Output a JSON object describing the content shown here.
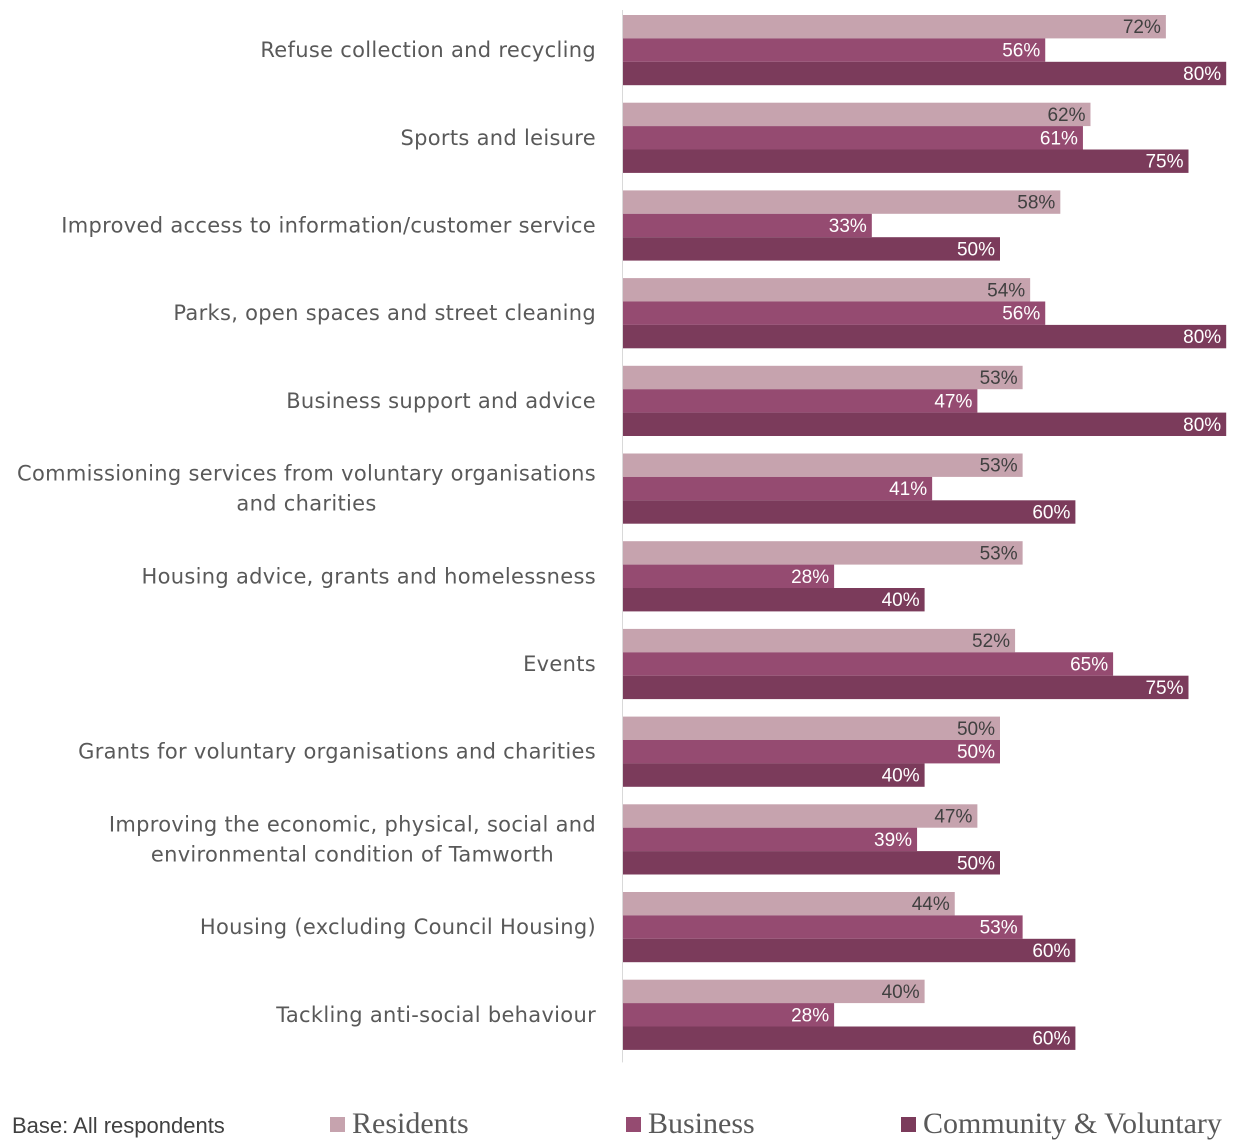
{
  "chart_data": {
    "type": "bar",
    "orientation": "horizontal",
    "categories": [
      [
        "Refuse collection and recycling"
      ],
      [
        "Sports and leisure"
      ],
      [
        "Improved access to information/customer service"
      ],
      [
        "Parks, open spaces and street cleaning"
      ],
      [
        "Business support and advice"
      ],
      [
        "Commissioning services from voluntary organisations",
        "and charities"
      ],
      [
        "Housing advice, grants and homelessness"
      ],
      [
        "Events"
      ],
      [
        "Grants for voluntary organisations and charities"
      ],
      [
        "Improving the economic, physical, social and",
        "environmental condition of Tamworth"
      ],
      [
        "Housing (excluding Council Housing)"
      ],
      [
        "Tackling anti-social behaviour"
      ]
    ],
    "series": [
      {
        "name": "Residents",
        "color": "#c6a3ae",
        "label_color": "#404040",
        "values": [
          72,
          62,
          58,
          54,
          53,
          53,
          53,
          52,
          50,
          47,
          44,
          40
        ]
      },
      {
        "name": "Business",
        "color": "#954b71",
        "label_color": "#ffffff",
        "values": [
          56,
          61,
          33,
          56,
          47,
          41,
          28,
          65,
          50,
          39,
          53,
          28
        ]
      },
      {
        "name": "Community & Voluntary",
        "color": "#7b3b5b",
        "label_color": "#ffffff",
        "values": [
          80,
          75,
          50,
          80,
          80,
          60,
          40,
          75,
          40,
          50,
          60,
          60
        ]
      }
    ],
    "value_suffix": "%",
    "xlim": [
      0,
      80
    ],
    "legend_position": "bottom",
    "grid": false
  },
  "footer": {
    "base_note": "Base: All respondents"
  }
}
